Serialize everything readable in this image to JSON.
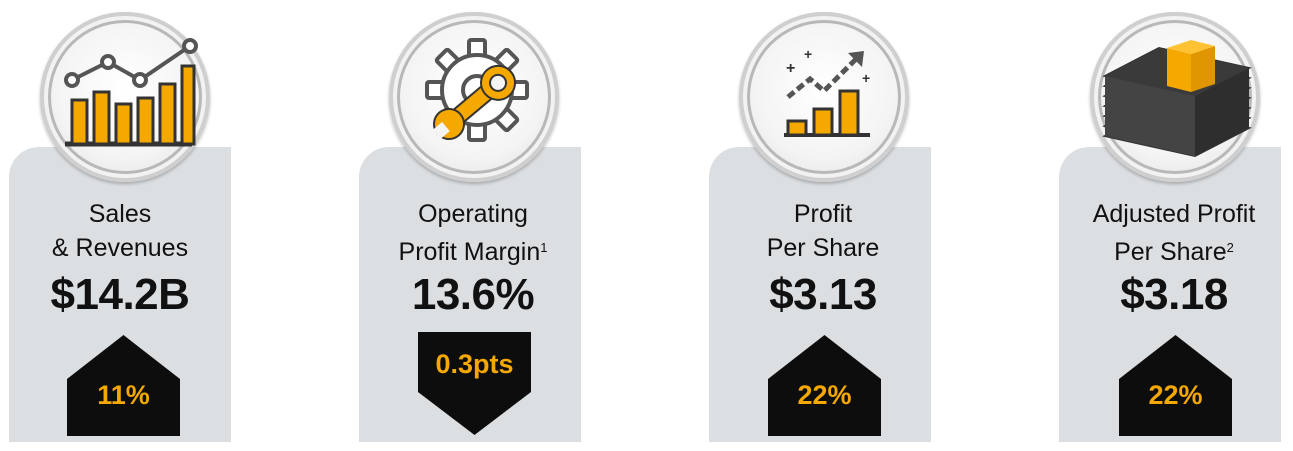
{
  "colors": {
    "accent": "#f5a800",
    "badge": "#0d0d0d",
    "card": "#dcdfe2",
    "text": "#111111"
  },
  "metrics": [
    {
      "icon": "bar-line-chart-icon",
      "label_line1": "Sales",
      "label_line2": "& Revenues",
      "footnote": "",
      "value": "$14.2B",
      "change": "11%",
      "direction": "up"
    },
    {
      "icon": "gear-wrench-icon",
      "label_line1": "Operating",
      "label_line2": "Profit Margin",
      "footnote": "1",
      "value": "13.6%",
      "change": "0.3pts",
      "direction": "down"
    },
    {
      "icon": "growth-chart-icon",
      "label_line1": "Profit",
      "label_line2": "Per Share",
      "footnote": "",
      "value": "$3.13",
      "change": "22%",
      "direction": "up"
    },
    {
      "icon": "cash-stack-icon",
      "label_line1": "Adjusted Profit",
      "label_line2": "Per Share",
      "footnote": "2",
      "value": "$3.18",
      "change": "22%",
      "direction": "up"
    }
  ]
}
